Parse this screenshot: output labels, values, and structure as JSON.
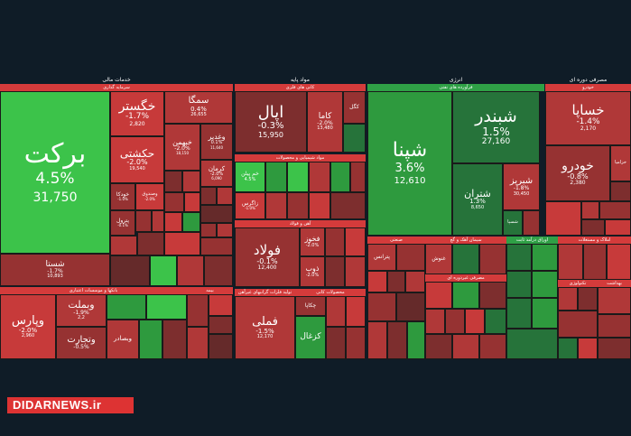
{
  "sections": {
    "financial": "خدمات مالی",
    "basic_materials": "مواد پایه",
    "energy": "انرژی",
    "consumer_goods": "مصرفی دوره ای"
  },
  "subsections": {
    "investment": "سرمایه گذاری",
    "chemical_minerals": "کانی های فلزی",
    "refining": "فرآورده های نفتی",
    "automotive": "خودرو",
    "chem_products": "مواد شیمیایی و محصولات",
    "iron_steel": "آهن و فولاد",
    "banking": "بانکها و موسسات اعتباری",
    "insurance": "بیمه",
    "base_metals": "تولید فلزات گرانبهای غیرآهن",
    "mineral_products": "محصولات کانی",
    "industrial": "صنعتی",
    "agriculture": "سیمان آهک و گچ",
    "consumer_nondur": "مصرفی غیردوره ای",
    "fixed_income": "اوراق درآمد ثابت",
    "tech": "تکنولوژی",
    "real_estate": "املاک و مستغلات",
    "telecom": "بهداشت"
  },
  "tiles": {
    "barakat": {
      "name": "برکت",
      "change": "4.5%",
      "price": "31,750"
    },
    "khgostar": {
      "name": "خگستر",
      "change": "-1.7%",
      "price": "2,820"
    },
    "semga": {
      "name": "سمگا",
      "change": "0.4%",
      "price": "26,655"
    },
    "hekeshti": {
      "name": "حکشتی",
      "change": "-2.0%",
      "price": "19,540"
    },
    "khamen": {
      "name": "خبهمن",
      "change": "-2.0%",
      "price": "18,150"
    },
    "vaghadir": {
      "name": "وغدیر",
      "change": "0.1%",
      "price": "11,640"
    },
    "karman": {
      "name": "کرمان",
      "change": "-2.0%",
      "price": "6,090"
    },
    "khodka": {
      "name": "خودکا",
      "change": "-1.0%",
      "price": "2,400"
    },
    "vasandir": {
      "name": "وصندوق",
      "change": "-2.0%",
      "price": ""
    },
    "vpetrol": {
      "name": "پترول",
      "change": "-0.1%",
      "price": ""
    },
    "shasta": {
      "name": "شستا",
      "change": "-1.7%",
      "price": "10,893"
    },
    "apal": {
      "name": "اپال",
      "change": "-0.3%",
      "price": "15,950"
    },
    "kama": {
      "name": "کاما",
      "change": "-2.0%",
      "price": "13,480"
    },
    "kagal": {
      "name": "کگل",
      "change": "",
      "price": ""
    },
    "shepna": {
      "name": "شپنا",
      "change": "3.6%",
      "price": "12,610"
    },
    "shabandar": {
      "name": "شبندر",
      "change": "1.5%",
      "price": "27,160"
    },
    "shiriz": {
      "name": "شبریز",
      "change": "-1.8%",
      "price": "30,450"
    },
    "shetran": {
      "name": "شتران",
      "change": "1.3%",
      "price": "8,650"
    },
    "shasina": {
      "name": "شسپا",
      "change": "",
      "price": ""
    },
    "khsapa": {
      "name": "خساپا",
      "change": "-1.4%",
      "price": "2,170"
    },
    "khodro": {
      "name": "خودرو",
      "change": "-0.8%",
      "price": "2,380"
    },
    "khazar": {
      "name": "خزامیا",
      "change": "",
      "price": ""
    },
    "khamiya": {
      "name": "خم پیلن",
      "change": "4.5%",
      "price": ""
    },
    "zagros": {
      "name": "زاگرس",
      "change": "-1.0%",
      "price": ""
    },
    "fulad": {
      "name": "فولاد",
      "change": "-0.1%",
      "price": "12,400"
    },
    "fakhoz": {
      "name": "فخوز",
      "change": "-2.0%",
      "price": ""
    },
    "zob": {
      "name": "ذوب",
      "change": "-2.0%",
      "price": ""
    },
    "vapars": {
      "name": "وپارس",
      "change": "-2.0%",
      "price": "2,960"
    },
    "vbmellat": {
      "name": "وبملت",
      "change": "-1.9%",
      "price": "2,2"
    },
    "vtejarat": {
      "name": "وتجارت",
      "change": "-0.5%",
      "price": ""
    },
    "vbsader": {
      "name": "وبصادر",
      "change": "",
      "price": ""
    },
    "fameli": {
      "name": "فملی",
      "change": "-1.5%",
      "price": "12,170"
    },
    "kegazal": {
      "name": "کگل",
      "change": "",
      "price": ""
    },
    "chekapa": {
      "name": "چکاپا",
      "change": "",
      "price": ""
    },
    "bantas": {
      "name": "پترانس",
      "change": "",
      "price": ""
    },
    "khesafa": {
      "name": "غنوش",
      "change": "",
      "price": ""
    },
    "kaghazol": {
      "name": "کزغال",
      "change": "",
      "price": ""
    }
  },
  "watermark": "DIDARNEWS.ir"
}
